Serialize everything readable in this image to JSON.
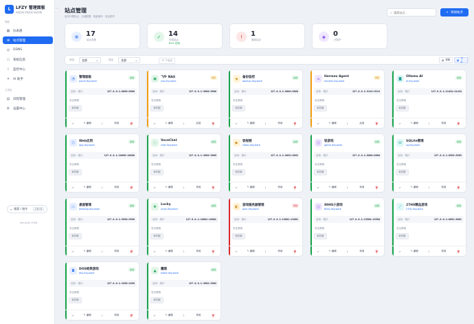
{
  "brand": {
    "logo": "L",
    "name": "LFZY 管理面板",
    "sub": "本地应用 智能管控 链接管理"
  },
  "sidebar": {
    "section_overview": "导航",
    "section_tools": "工作区",
    "items": [
      {
        "label": "仪表盘",
        "icon": "dashboard-icon"
      },
      {
        "label": "站点管理",
        "icon": "sites-icon"
      },
      {
        "label": "DDNS",
        "icon": "ddns-icon"
      },
      {
        "label": "系统信息",
        "icon": "system-icon"
      },
      {
        "label": "监控中心",
        "icon": "monitor-icon"
      },
      {
        "label": "AI 助手",
        "icon": "ai-icon"
      }
    ],
    "tools": [
      {
        "label": "日程管理",
        "icon": "calendar-icon"
      },
      {
        "label": "设置中心",
        "icon": "settings-icon"
      }
    ],
    "search_label": "搜索 / 指令",
    "search_kbd": "Ctrl K",
    "footer": "lfzy.work 2026"
  },
  "header": {
    "title": "站点管理",
    "subtitle": "反向代理站点 · 主域配置 · 批量操作 · 安全防护",
    "search_placeholder": "搜索站点...",
    "add_label": "添加站点"
  },
  "stats": [
    {
      "value": "17",
      "label": "站点总数",
      "sub": "",
      "icon": "globe-icon",
      "color": "#1f6bf2",
      "bg": "#e6efff"
    },
    {
      "value": "14",
      "label": "在线站点",
      "sub": "82% 在线",
      "icon": "check-icon",
      "color": "#16a34a",
      "bg": "#e3f6ea"
    },
    {
      "value": "1",
      "label": "离线站点",
      "sub": "",
      "icon": "alert-icon",
      "color": "#dc2626",
      "bg": "#fde6e6"
    },
    {
      "value": "0",
      "label": "已防护",
      "sub": "",
      "icon": "shield-icon",
      "color": "#7c3aed",
      "bg": "#efe7fd"
    }
  ],
  "filter": {
    "status_label": "状态",
    "status_value": "全部",
    "proto_label": "协议",
    "proto_value": "全部",
    "count": "17 个站点",
    "view_table": "表格",
    "view_card": "卡片"
  },
  "card_labels": {
    "target": "目标：端口",
    "policy": "安全策略",
    "policy_tag": "未防御",
    "open": "↗",
    "edit": "编辑",
    "pulse": "⌇",
    "stop": "停用",
    "enable": "启用",
    "delete": "🗑"
  },
  "sites": [
    {
      "name": "管理面板",
      "host": "panel.lfzy.work",
      "target": "127.0.0.1:8080:8080",
      "status": "在线",
      "state": "on",
      "accent": "#16a34a",
      "icon": "gauge-icon",
      "glyph": "◔",
      "ibg": "#e6efff",
      "ic": "#1f6bf2",
      "toggle": "停用"
    },
    {
      "name": "飞牛 NAS",
      "host": "nas.lfzy.work",
      "target": "127.0.0.1:5666:5666",
      "status": "待定",
      "state": "warn",
      "accent": "#f59e0b",
      "icon": "nas-icon",
      "glyph": "▣",
      "ibg": "#e3f6ea",
      "ic": "#16a34a",
      "toggle": "启用"
    },
    {
      "name": "备份监控",
      "host": "backup.lfzy.work",
      "target": "127.0.0.1:8088:8088",
      "status": "在线",
      "state": "on",
      "accent": "#16a34a",
      "icon": "backup-icon",
      "glyph": "◈",
      "ibg": "#fff4d9",
      "ic": "#c77d00",
      "toggle": "停用"
    },
    {
      "name": "Hermes Agent",
      "host": "hermes.lfzy.work",
      "target": "127.0.0.1:9119:9119",
      "status": "待定",
      "state": "warn",
      "accent": "#f59e0b",
      "icon": "agent-icon",
      "glyph": "⌂",
      "ibg": "#efe7fd",
      "ic": "#7c3aed",
      "toggle": "启用"
    },
    {
      "name": "Ollama AI",
      "host": "ai.lfzy.work",
      "target": "127.0.0.1:11434:11434",
      "status": "在线",
      "state": "on",
      "accent": "#16a34a",
      "icon": "robot-icon",
      "glyph": "◙",
      "ibg": "#dff7f7",
      "ic": "#0d9488",
      "toggle": "停用"
    },
    {
      "name": "Web应用",
      "host": "app.lfzy.work",
      "target": "127.0.0.1:18090:18090",
      "status": "在线",
      "state": "on",
      "accent": "#16a34a",
      "icon": "cube-icon",
      "glyph": "⬡",
      "ibg": "#e6efff",
      "ic": "#1f6bf2",
      "toggle": "停用"
    },
    {
      "name": "VoceChat",
      "host": "chat.lfzy.work",
      "target": "127.0.0.1:3009:3009",
      "status": "在线",
      "state": "on",
      "accent": "#16a34a",
      "icon": "chat-icon",
      "glyph": "◌",
      "ibg": "#e3f6ea",
      "ic": "#16a34a",
      "toggle": "停用"
    },
    {
      "name": "轻视频",
      "host": "video.lfzy.work",
      "target": "127.0.0.1:8092:8092",
      "status": "在线",
      "state": "on",
      "accent": "#16a34a",
      "icon": "video-icon",
      "glyph": "▶",
      "ibg": "#fff4d9",
      "ic": "#c77d00",
      "toggle": "停用"
    },
    {
      "name": "轻游戏",
      "host": "game.lfzy.work",
      "target": "127.0.0.1:8666:8666",
      "status": "在线",
      "state": "on",
      "accent": "#16a34a",
      "icon": "gamepad-icon",
      "glyph": "◫",
      "ibg": "#efe7fd",
      "ic": "#7c3aed",
      "toggle": "停用"
    },
    {
      "name": "SQLite管理",
      "host": "sq.lfzy.work",
      "target": "127.0.0.1:8503:8503",
      "status": "在线",
      "state": "on",
      "accent": "#16a34a",
      "icon": "database-icon",
      "glyph": "⛁",
      "ibg": "#dff7f7",
      "ic": "#0d9488",
      "toggle": "停用"
    },
    {
      "name": "桌面管理",
      "host": "desktop.lfzy.work",
      "target": "127.0.0.1:9990:9990",
      "status": "在线",
      "state": "on",
      "accent": "#16a34a",
      "icon": "monitor-icon",
      "glyph": "▭",
      "ibg": "#e6efff",
      "ic": "#1f6bf2",
      "toggle": "停用"
    },
    {
      "name": "Lucky",
      "host": "lucky.lfzy.work",
      "target": "127.0.0.1:16601:16601",
      "status": "在线",
      "state": "on",
      "accent": "#16a34a",
      "icon": "clover-icon",
      "glyph": "✤",
      "ibg": "#e3f6ea",
      "ic": "#16a34a",
      "toggle": "停用"
    },
    {
      "name": "游戏服务器管理",
      "host": "gsm.lfzy.work",
      "target": "127.0.0.1:13001:13001",
      "status": "离线",
      "state": "bad",
      "accent": "#dc2626",
      "icon": "server-icon",
      "glyph": "◧",
      "ibg": "#fff4d9",
      "ic": "#c77d00",
      "toggle": "停用"
    },
    {
      "name": "80HS小游戏",
      "host": "80hs.lfzy.work",
      "target": "127.0.0.1:13580:13580",
      "status": "在线",
      "state": "on",
      "accent": "#16a34a",
      "icon": "gamepad-icon",
      "glyph": "◫",
      "ibg": "#efe7fd",
      "ic": "#7c3aed",
      "toggle": "停用"
    },
    {
      "name": "27HS精品游戏",
      "host": "27hs.lfzy.work",
      "target": "127.0.0.1:8081:8081",
      "status": "在线",
      "state": "on",
      "accent": "#16a34a",
      "icon": "wand-icon",
      "glyph": "⟋",
      "ibg": "#dff7f7",
      "ic": "#0d9488",
      "toggle": "停用"
    },
    {
      "name": "DOS经典游戏",
      "host": "dos.lfzy.work",
      "target": "127.0.0.1:3456:3456",
      "status": "在线",
      "state": "on",
      "accent": "#16a34a",
      "icon": "floppy-icon",
      "glyph": "◘",
      "ibg": "#e6efff",
      "ic": "#1f6bf2",
      "toggle": "停用"
    },
    {
      "name": "魔塔",
      "host": "tower.lfzy.work",
      "target": "127.0.0.1:3002:3002",
      "status": "在线",
      "state": "on",
      "accent": "#16a34a",
      "icon": "tower-icon",
      "glyph": "▲",
      "ibg": "#e3f6ea",
      "ic": "#16a34a",
      "toggle": "停用"
    }
  ]
}
